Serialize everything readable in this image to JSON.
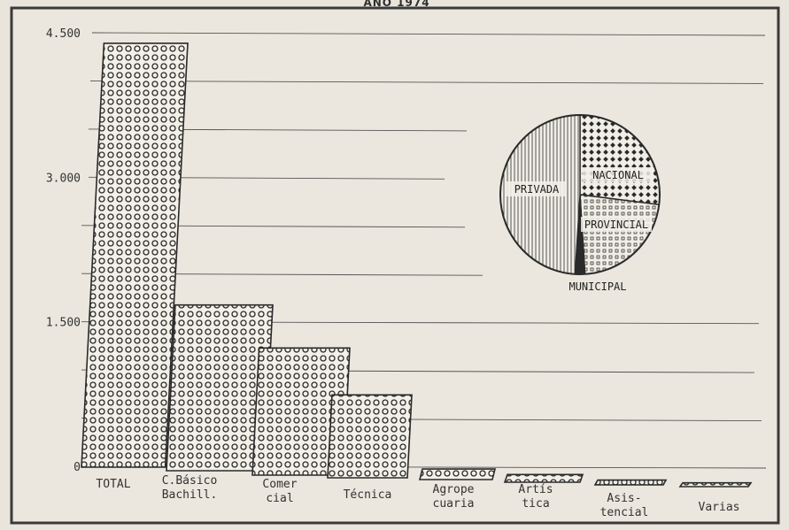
{
  "title": "AÑO 1974",
  "chart_data": [
    {
      "type": "bar",
      "categories": [
        [
          "TOTAL"
        ],
        [
          "C.Básico",
          "Bachill."
        ],
        [
          "Comer",
          "cial"
        ],
        [
          "Técnica"
        ],
        [
          "Agrope",
          "cuaria"
        ],
        [
          "Artís",
          "tica"
        ],
        [
          "Asis-",
          "tencial"
        ],
        [
          "Varias"
        ]
      ],
      "values": [
        4400,
        1720,
        1320,
        860,
        110,
        80,
        50,
        40
      ],
      "ylim": [
        0,
        4500
      ],
      "yticks": [
        {
          "value": 0,
          "label": "0"
        },
        {
          "value": 1500,
          "label": "1.500"
        },
        {
          "value": 3000,
          "label": "3.000"
        },
        {
          "value": 4500,
          "label": "4.500"
        }
      ],
      "grid": true,
      "colors": {
        "bar_fill": "#f3f0e8",
        "bar_stroke": "#2a2a2a"
      }
    },
    {
      "type": "pie",
      "labels": [
        "NACIONAL",
        "PROVINCIAL",
        "MUNICIPAL",
        "PRIVADA"
      ],
      "values": [
        27,
        22,
        2,
        49
      ],
      "patterns": [
        "crosshatch",
        "dots",
        "solid",
        "vertical-lines"
      ],
      "legend": "labels-on-slices"
    }
  ]
}
